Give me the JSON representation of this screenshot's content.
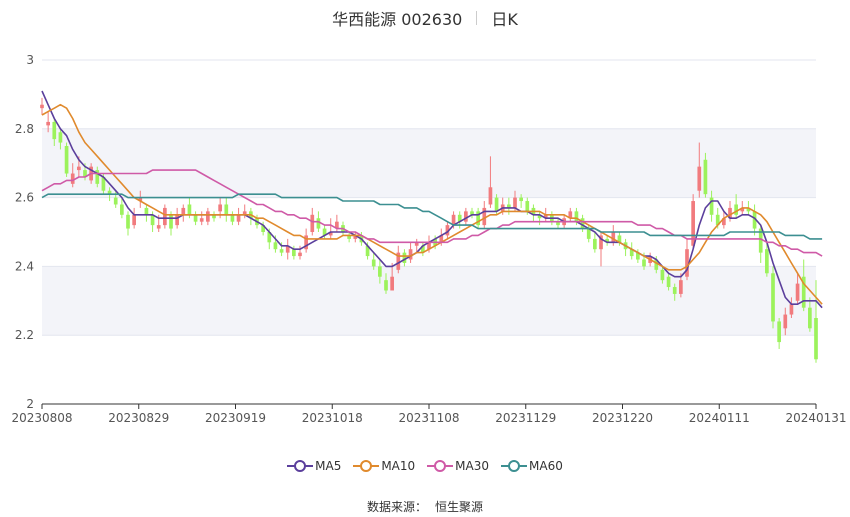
{
  "header": {
    "title": "华西能源 002630",
    "period": "日K"
  },
  "footer": {
    "source_label": "数据来源：",
    "source_name": "恒生聚源"
  },
  "colors": {
    "up": "#f17b7e",
    "down": "#9cf25c",
    "ma5": "#5b3f9c",
    "ma10": "#e08a2d",
    "ma30": "#cf5aa7",
    "ma60": "#3c8f91",
    "grid_band": "#f3f4f9",
    "grid_line": "#e3e6ef",
    "axis": "#333333"
  },
  "chart_data": {
    "type": "candlestick",
    "title": "华西能源 002630",
    "subtitle": "日K",
    "ylim": [
      2,
      3
    ],
    "y_ticks": [
      "2",
      "2.2",
      "2.4",
      "2.6",
      "2.8",
      "3"
    ],
    "x_ticks": [
      "20230808",
      "20230829",
      "20230919",
      "20231018",
      "20231108",
      "20231129",
      "20231220",
      "20240111",
      "20240131"
    ],
    "legend": [
      "MA5",
      "MA10",
      "MA30",
      "MA60"
    ],
    "legend_position": "bottom",
    "grid": true,
    "candles": [
      [
        2.86,
        2.87,
        2.89,
        2.84
      ],
      [
        2.81,
        2.82,
        2.85,
        2.79
      ],
      [
        2.82,
        2.77,
        2.83,
        2.75
      ],
      [
        2.79,
        2.76,
        2.8,
        2.74
      ],
      [
        2.75,
        2.67,
        2.76,
        2.66
      ],
      [
        2.64,
        2.67,
        2.7,
        2.63
      ],
      [
        2.68,
        2.69,
        2.72,
        2.66
      ],
      [
        2.68,
        2.66,
        2.7,
        2.65
      ],
      [
        2.65,
        2.69,
        2.7,
        2.64
      ],
      [
        2.68,
        2.64,
        2.69,
        2.63
      ],
      [
        2.66,
        2.62,
        2.67,
        2.61
      ],
      [
        2.62,
        2.61,
        2.63,
        2.59
      ],
      [
        2.6,
        2.58,
        2.62,
        2.57
      ],
      [
        2.58,
        2.55,
        2.6,
        2.54
      ],
      [
        2.55,
        2.51,
        2.56,
        2.49
      ],
      [
        2.52,
        2.55,
        2.57,
        2.51
      ],
      [
        2.59,
        2.6,
        2.62,
        2.57
      ],
      [
        2.57,
        2.55,
        2.58,
        2.53
      ],
      [
        2.55,
        2.52,
        2.56,
        2.5
      ],
      [
        2.51,
        2.52,
        2.55,
        2.5
      ],
      [
        2.52,
        2.57,
        2.58,
        2.51
      ],
      [
        2.55,
        2.51,
        2.56,
        2.49
      ],
      [
        2.52,
        2.55,
        2.57,
        2.51
      ],
      [
        2.55,
        2.57,
        2.58,
        2.53
      ],
      [
        2.58,
        2.55,
        2.6,
        2.54
      ],
      [
        2.55,
        2.53,
        2.56,
        2.52
      ],
      [
        2.53,
        2.54,
        2.56,
        2.52
      ],
      [
        2.53,
        2.56,
        2.57,
        2.52
      ],
      [
        2.55,
        2.54,
        2.56,
        2.53
      ],
      [
        2.56,
        2.58,
        2.6,
        2.54
      ],
      [
        2.58,
        2.55,
        2.6,
        2.53
      ],
      [
        2.55,
        2.53,
        2.56,
        2.52
      ],
      [
        2.53,
        2.55,
        2.57,
        2.52
      ],
      [
        2.55,
        2.56,
        2.58,
        2.54
      ],
      [
        2.56,
        2.54,
        2.57,
        2.52
      ],
      [
        2.54,
        2.52,
        2.55,
        2.51
      ],
      [
        2.52,
        2.5,
        2.53,
        2.49
      ],
      [
        2.5,
        2.47,
        2.51,
        2.45
      ],
      [
        2.47,
        2.45,
        2.49,
        2.44
      ],
      [
        2.45,
        2.44,
        2.47,
        2.43
      ],
      [
        2.44,
        2.46,
        2.48,
        2.42
      ],
      [
        2.45,
        2.43,
        2.46,
        2.42
      ],
      [
        2.43,
        2.44,
        2.46,
        2.42
      ],
      [
        2.45,
        2.49,
        2.51,
        2.44
      ],
      [
        2.5,
        2.55,
        2.57,
        2.49
      ],
      [
        2.54,
        2.51,
        2.56,
        2.5
      ],
      [
        2.51,
        2.49,
        2.52,
        2.48
      ],
      [
        2.49,
        2.5,
        2.54,
        2.48
      ],
      [
        2.51,
        2.53,
        2.55,
        2.5
      ],
      [
        2.52,
        2.5,
        2.53,
        2.49
      ],
      [
        2.49,
        2.48,
        2.5,
        2.47
      ],
      [
        2.48,
        2.49,
        2.5,
        2.47
      ],
      [
        2.49,
        2.47,
        2.5,
        2.46
      ],
      [
        2.46,
        2.43,
        2.47,
        2.42
      ],
      [
        2.42,
        2.4,
        2.44,
        2.39
      ],
      [
        2.4,
        2.37,
        2.42,
        2.35
      ],
      [
        2.36,
        2.33,
        2.38,
        2.32
      ],
      [
        2.33,
        2.37,
        2.41,
        2.33
      ],
      [
        2.39,
        2.44,
        2.46,
        2.38
      ],
      [
        2.44,
        2.41,
        2.45,
        2.4
      ],
      [
        2.42,
        2.45,
        2.47,
        2.41
      ],
      [
        2.46,
        2.47,
        2.48,
        2.44
      ],
      [
        2.46,
        2.44,
        2.47,
        2.43
      ],
      [
        2.45,
        2.47,
        2.49,
        2.44
      ],
      [
        2.48,
        2.46,
        2.49,
        2.45
      ],
      [
        2.47,
        2.49,
        2.51,
        2.46
      ],
      [
        2.49,
        2.52,
        2.53,
        2.48
      ],
      [
        2.52,
        2.55,
        2.56,
        2.51
      ],
      [
        2.55,
        2.53,
        2.56,
        2.51
      ],
      [
        2.53,
        2.56,
        2.57,
        2.52
      ],
      [
        2.56,
        2.55,
        2.57,
        2.54
      ],
      [
        2.56,
        2.52,
        2.57,
        2.51
      ],
      [
        2.52,
        2.57,
        2.59,
        2.51
      ],
      [
        2.58,
        2.63,
        2.72,
        2.57
      ],
      [
        2.6,
        2.56,
        2.61,
        2.55
      ],
      [
        2.56,
        2.58,
        2.6,
        2.55
      ],
      [
        2.58,
        2.57,
        2.6,
        2.55
      ],
      [
        2.57,
        2.6,
        2.62,
        2.56
      ],
      [
        2.6,
        2.59,
        2.61,
        2.57
      ],
      [
        2.59,
        2.56,
        2.6,
        2.55
      ],
      [
        2.57,
        2.55,
        2.58,
        2.53
      ],
      [
        2.55,
        2.54,
        2.56,
        2.52
      ],
      [
        2.54,
        2.55,
        2.57,
        2.53
      ],
      [
        2.55,
        2.53,
        2.56,
        2.52
      ],
      [
        2.53,
        2.52,
        2.54,
        2.51
      ],
      [
        2.52,
        2.54,
        2.55,
        2.51
      ],
      [
        2.54,
        2.56,
        2.57,
        2.53
      ],
      [
        2.56,
        2.53,
        2.57,
        2.52
      ],
      [
        2.54,
        2.51,
        2.55,
        2.5
      ],
      [
        2.51,
        2.48,
        2.52,
        2.47
      ],
      [
        2.48,
        2.45,
        2.5,
        2.44
      ],
      [
        2.45,
        2.49,
        2.5,
        2.4
      ],
      [
        2.48,
        2.47,
        2.49,
        2.46
      ],
      [
        2.47,
        2.5,
        2.52,
        2.46
      ],
      [
        2.49,
        2.47,
        2.5,
        2.46
      ],
      [
        2.47,
        2.45,
        2.48,
        2.43
      ],
      [
        2.45,
        2.43,
        2.47,
        2.42
      ],
      [
        2.44,
        2.42,
        2.45,
        2.41
      ],
      [
        2.42,
        2.4,
        2.44,
        2.39
      ],
      [
        2.41,
        2.43,
        2.44,
        2.4
      ],
      [
        2.42,
        2.39,
        2.43,
        2.38
      ],
      [
        2.39,
        2.36,
        2.4,
        2.35
      ],
      [
        2.37,
        2.34,
        2.38,
        2.33
      ],
      [
        2.34,
        2.32,
        2.35,
        2.3
      ],
      [
        2.32,
        2.36,
        2.38,
        2.31
      ],
      [
        2.37,
        2.45,
        2.48,
        2.36
      ],
      [
        2.46,
        2.59,
        2.61,
        2.45
      ],
      [
        2.62,
        2.69,
        2.76,
        2.6
      ],
      [
        2.71,
        2.61,
        2.73,
        2.6
      ],
      [
        2.6,
        2.55,
        2.62,
        2.53
      ],
      [
        2.55,
        2.52,
        2.57,
        2.51
      ],
      [
        2.52,
        2.54,
        2.56,
        2.51
      ],
      [
        2.54,
        2.57,
        2.59,
        2.53
      ],
      [
        2.58,
        2.55,
        2.61,
        2.54
      ],
      [
        2.56,
        2.57,
        2.59,
        2.55
      ],
      [
        2.57,
        2.56,
        2.59,
        2.55
      ],
      [
        2.56,
        2.51,
        2.58,
        2.49
      ],
      [
        2.51,
        2.44,
        2.52,
        2.41
      ],
      [
        2.45,
        2.38,
        2.47,
        2.37
      ],
      [
        2.38,
        2.24,
        2.4,
        2.22
      ],
      [
        2.24,
        2.18,
        2.25,
        2.16
      ],
      [
        2.22,
        2.26,
        2.28,
        2.2
      ],
      [
        2.26,
        2.29,
        2.31,
        2.25
      ],
      [
        2.3,
        2.35,
        2.38,
        2.29
      ],
      [
        2.37,
        2.28,
        2.42,
        2.27
      ],
      [
        2.28,
        2.22,
        2.31,
        2.21
      ],
      [
        2.25,
        2.13,
        2.36,
        2.12
      ]
    ],
    "series": [
      {
        "name": "MA5",
        "values": [
          2.91,
          2.87,
          2.83,
          2.8,
          2.78,
          2.74,
          2.71,
          2.69,
          2.68,
          2.67,
          2.66,
          2.64,
          2.62,
          2.6,
          2.57,
          2.55,
          2.55,
          2.55,
          2.55,
          2.54,
          2.54,
          2.54,
          2.54,
          2.55,
          2.55,
          2.55,
          2.55,
          2.55,
          2.55,
          2.55,
          2.55,
          2.55,
          2.55,
          2.55,
          2.54,
          2.53,
          2.52,
          2.5,
          2.48,
          2.46,
          2.46,
          2.45,
          2.45,
          2.46,
          2.47,
          2.48,
          2.49,
          2.5,
          2.5,
          2.5,
          2.5,
          2.49,
          2.48,
          2.46,
          2.44,
          2.42,
          2.4,
          2.4,
          2.41,
          2.42,
          2.43,
          2.44,
          2.46,
          2.47,
          2.48,
          2.49,
          2.5,
          2.52,
          2.53,
          2.54,
          2.55,
          2.55,
          2.56,
          2.56,
          2.56,
          2.57,
          2.57,
          2.57,
          2.56,
          2.56,
          2.55,
          2.55,
          2.54,
          2.54,
          2.54,
          2.53,
          2.53,
          2.53,
          2.52,
          2.51,
          2.5,
          2.48,
          2.47,
          2.47,
          2.47,
          2.46,
          2.45,
          2.44,
          2.43,
          2.43,
          2.42,
          2.4,
          2.38,
          2.37,
          2.37,
          2.39,
          2.45,
          2.52,
          2.57,
          2.59,
          2.59,
          2.56,
          2.54,
          2.54,
          2.55,
          2.55,
          2.54,
          2.52,
          2.47,
          2.41,
          2.36,
          2.31,
          2.29,
          2.29,
          2.3,
          2.3,
          2.3,
          2.28
        ]
      },
      {
        "name": "MA10",
        "values": [
          2.84,
          2.85,
          2.86,
          2.87,
          2.86,
          2.83,
          2.79,
          2.76,
          2.74,
          2.72,
          2.7,
          2.68,
          2.66,
          2.64,
          2.62,
          2.6,
          2.59,
          2.58,
          2.57,
          2.56,
          2.55,
          2.55,
          2.55,
          2.55,
          2.55,
          2.55,
          2.55,
          2.55,
          2.55,
          2.55,
          2.55,
          2.55,
          2.55,
          2.55,
          2.55,
          2.54,
          2.54,
          2.53,
          2.52,
          2.51,
          2.5,
          2.49,
          2.49,
          2.48,
          2.48,
          2.48,
          2.48,
          2.48,
          2.48,
          2.49,
          2.49,
          2.49,
          2.49,
          2.48,
          2.47,
          2.46,
          2.45,
          2.44,
          2.43,
          2.43,
          2.43,
          2.44,
          2.44,
          2.45,
          2.46,
          2.47,
          2.48,
          2.49,
          2.5,
          2.51,
          2.52,
          2.53,
          2.54,
          2.55,
          2.55,
          2.56,
          2.56,
          2.56,
          2.56,
          2.56,
          2.56,
          2.56,
          2.55,
          2.55,
          2.55,
          2.55,
          2.54,
          2.54,
          2.53,
          2.52,
          2.51,
          2.5,
          2.49,
          2.48,
          2.47,
          2.46,
          2.45,
          2.44,
          2.43,
          2.42,
          2.41,
          2.4,
          2.39,
          2.39,
          2.39,
          2.4,
          2.42,
          2.44,
          2.47,
          2.5,
          2.52,
          2.54,
          2.55,
          2.56,
          2.57,
          2.57,
          2.56,
          2.55,
          2.53,
          2.5,
          2.47,
          2.44,
          2.41,
          2.38,
          2.35,
          2.33,
          2.31,
          2.29
        ]
      },
      {
        "name": "MA30",
        "values": [
          2.62,
          2.63,
          2.64,
          2.64,
          2.65,
          2.65,
          2.66,
          2.66,
          2.67,
          2.67,
          2.67,
          2.67,
          2.67,
          2.67,
          2.67,
          2.67,
          2.67,
          2.67,
          2.68,
          2.68,
          2.68,
          2.68,
          2.68,
          2.68,
          2.68,
          2.68,
          2.67,
          2.66,
          2.65,
          2.64,
          2.63,
          2.62,
          2.61,
          2.6,
          2.59,
          2.58,
          2.58,
          2.57,
          2.56,
          2.56,
          2.55,
          2.55,
          2.54,
          2.54,
          2.53,
          2.53,
          2.52,
          2.52,
          2.51,
          2.51,
          2.5,
          2.5,
          2.49,
          2.48,
          2.48,
          2.47,
          2.47,
          2.47,
          2.47,
          2.47,
          2.47,
          2.47,
          2.47,
          2.47,
          2.47,
          2.47,
          2.47,
          2.48,
          2.48,
          2.48,
          2.49,
          2.49,
          2.5,
          2.51,
          2.51,
          2.52,
          2.52,
          2.53,
          2.53,
          2.53,
          2.53,
          2.53,
          2.53,
          2.53,
          2.53,
          2.53,
          2.53,
          2.53,
          2.53,
          2.53,
          2.53,
          2.53,
          2.53,
          2.53,
          2.53,
          2.53,
          2.53,
          2.52,
          2.52,
          2.52,
          2.51,
          2.51,
          2.5,
          2.49,
          2.49,
          2.48,
          2.48,
          2.48,
          2.48,
          2.48,
          2.48,
          2.48,
          2.48,
          2.48,
          2.48,
          2.48,
          2.48,
          2.48,
          2.47,
          2.47,
          2.46,
          2.46,
          2.45,
          2.45,
          2.44,
          2.44,
          2.44,
          2.43
        ]
      },
      {
        "name": "MA60",
        "values": [
          2.6,
          2.61,
          2.61,
          2.61,
          2.61,
          2.61,
          2.61,
          2.61,
          2.61,
          2.61,
          2.61,
          2.61,
          2.61,
          2.61,
          2.6,
          2.6,
          2.6,
          2.6,
          2.6,
          2.6,
          2.6,
          2.6,
          2.6,
          2.6,
          2.6,
          2.6,
          2.6,
          2.6,
          2.6,
          2.6,
          2.6,
          2.6,
          2.61,
          2.61,
          2.61,
          2.61,
          2.61,
          2.61,
          2.61,
          2.6,
          2.6,
          2.6,
          2.6,
          2.6,
          2.6,
          2.6,
          2.6,
          2.6,
          2.6,
          2.59,
          2.59,
          2.59,
          2.59,
          2.59,
          2.59,
          2.58,
          2.58,
          2.58,
          2.58,
          2.57,
          2.57,
          2.57,
          2.56,
          2.56,
          2.55,
          2.54,
          2.53,
          2.52,
          2.52,
          2.52,
          2.52,
          2.51,
          2.51,
          2.51,
          2.51,
          2.51,
          2.51,
          2.51,
          2.51,
          2.51,
          2.51,
          2.51,
          2.51,
          2.51,
          2.51,
          2.51,
          2.51,
          2.51,
          2.51,
          2.51,
          2.51,
          2.5,
          2.5,
          2.5,
          2.5,
          2.5,
          2.5,
          2.5,
          2.5,
          2.49,
          2.49,
          2.49,
          2.49,
          2.49,
          2.49,
          2.49,
          2.49,
          2.49,
          2.49,
          2.49,
          2.49,
          2.49,
          2.5,
          2.5,
          2.5,
          2.5,
          2.5,
          2.5,
          2.5,
          2.5,
          2.5,
          2.49,
          2.49,
          2.49,
          2.49,
          2.48,
          2.48,
          2.48
        ]
      }
    ]
  }
}
